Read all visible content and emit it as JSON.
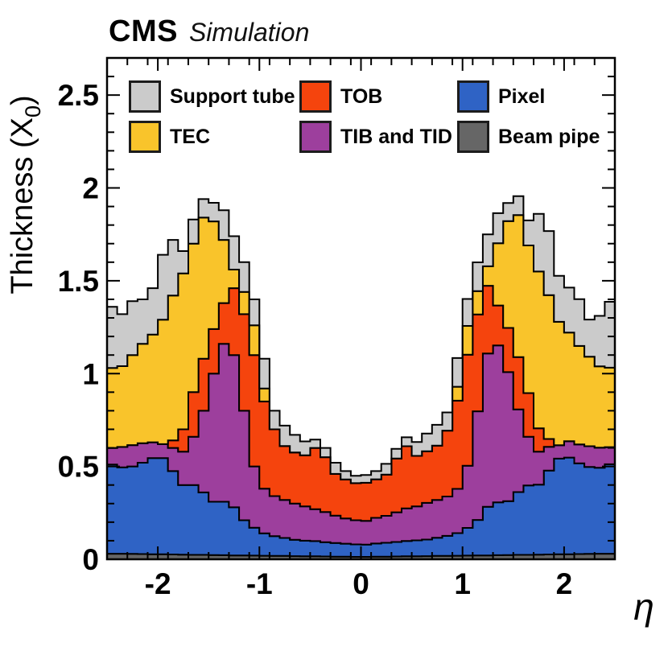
{
  "title": {
    "brand": "CMS",
    "subtitle": "Simulation"
  },
  "y_axis": {
    "label_prefix": "Thickness (X",
    "label_sub": "0",
    "label_suffix": ")",
    "tick_labels": [
      "0",
      "0.5",
      "1",
      "1.5",
      "2",
      "2.5"
    ],
    "tick_values": [
      0,
      0.5,
      1,
      1.5,
      2,
      2.5
    ],
    "minor_step": 0.1
  },
  "x_axis": {
    "label": "η",
    "tick_labels": [
      "-2",
      "-1",
      "0",
      "1",
      "2"
    ],
    "tick_values": [
      -2,
      -1,
      0,
      1,
      2
    ],
    "minor_step": 0.2
  },
  "legend": {
    "items": [
      {
        "label": "Support tube",
        "color": "#cbcbcb"
      },
      {
        "label": "TOB",
        "color": "#f5440d"
      },
      {
        "label": "Pixel",
        "color": "#2f63c5"
      },
      {
        "label": "TEC",
        "color": "#f9c42b"
      },
      {
        "label": "TIB and TID",
        "color": "#9d3f9d"
      },
      {
        "label": "Beam pipe",
        "color": "#666666"
      }
    ]
  },
  "chart_data": {
    "type": "area",
    "subtype": "stacked-histogram",
    "title": "CMS Simulation — tracker material budget",
    "xlabel": "η",
    "ylabel": "Thickness (X0)",
    "xlim": [
      -2.5,
      2.5
    ],
    "ylim": [
      0,
      2.7
    ],
    "bin_width": 0.1,
    "grid": false,
    "legend_position": "top-inside",
    "outline_color": "#000000",
    "frame_color": "#000000",
    "x": [
      -2.45,
      -2.35,
      -2.25,
      -2.15,
      -2.05,
      -1.95,
      -1.85,
      -1.75,
      -1.65,
      -1.55,
      -1.45,
      -1.35,
      -1.25,
      -1.15,
      -1.05,
      -0.95,
      -0.85,
      -0.75,
      -0.65,
      -0.55,
      -0.45,
      -0.35,
      -0.25,
      -0.15,
      -0.05,
      0.05,
      0.15,
      0.25,
      0.35,
      0.45,
      0.55,
      0.65,
      0.75,
      0.85,
      0.95,
      1.05,
      1.15,
      1.25,
      1.35,
      1.45,
      1.55,
      1.65,
      1.75,
      1.85,
      1.95,
      2.05,
      2.15,
      2.25,
      2.35,
      2.45
    ],
    "series": [
      {
        "name": "Beam pipe",
        "color": "#666666",
        "values": [
          0.03,
          0.03,
          0.029,
          0.028,
          0.027,
          0.027,
          0.026,
          0.025,
          0.024,
          0.024,
          0.023,
          0.022,
          0.021,
          0.021,
          0.02,
          0.019,
          0.018,
          0.018,
          0.017,
          0.016,
          0.016,
          0.015,
          0.014,
          0.014,
          0.013,
          0.013,
          0.014,
          0.014,
          0.015,
          0.016,
          0.016,
          0.017,
          0.018,
          0.018,
          0.019,
          0.02,
          0.021,
          0.021,
          0.022,
          0.023,
          0.024,
          0.024,
          0.025,
          0.026,
          0.027,
          0.027,
          0.028,
          0.029,
          0.03,
          0.03
        ]
      },
      {
        "name": "Pixel",
        "color": "#2f63c5",
        "values": [
          0.48,
          0.465,
          0.471,
          0.492,
          0.518,
          0.518,
          0.449,
          0.375,
          0.376,
          0.336,
          0.287,
          0.288,
          0.259,
          0.189,
          0.15,
          0.121,
          0.107,
          0.097,
          0.088,
          0.084,
          0.082,
          0.077,
          0.074,
          0.07,
          0.067,
          0.066,
          0.071,
          0.075,
          0.078,
          0.083,
          0.086,
          0.089,
          0.098,
          0.108,
          0.122,
          0.149,
          0.191,
          0.262,
          0.285,
          0.29,
          0.338,
          0.374,
          0.377,
          0.452,
          0.515,
          0.521,
          0.489,
          0.468,
          0.463,
          0.482
        ]
      },
      {
        "name": "TIB and TID",
        "color": "#9d3f9d",
        "values": [
          0.09,
          0.11,
          0.115,
          0.105,
          0.085,
          0.075,
          0.125,
          0.18,
          0.26,
          0.44,
          0.69,
          0.85,
          0.82,
          0.59,
          0.33,
          0.24,
          0.215,
          0.205,
          0.195,
          0.185,
          0.172,
          0.163,
          0.147,
          0.136,
          0.13,
          0.128,
          0.138,
          0.145,
          0.16,
          0.175,
          0.183,
          0.198,
          0.204,
          0.212,
          0.238,
          0.335,
          0.585,
          0.825,
          0.845,
          0.695,
          0.445,
          0.262,
          0.178,
          0.128,
          0.072,
          0.088,
          0.102,
          0.112,
          0.108,
          0.092
        ]
      },
      {
        "name": "TOB",
        "color": "#f5440d",
        "values": [
          0,
          0,
          0,
          0,
          0,
          0,
          0.04,
          0.12,
          0.24,
          0.28,
          0.24,
          0.22,
          0.36,
          0.52,
          0.6,
          0.47,
          0.36,
          0.29,
          0.275,
          0.275,
          0.33,
          0.295,
          0.225,
          0.21,
          0.2,
          0.205,
          0.208,
          0.222,
          0.29,
          0.335,
          0.272,
          0.278,
          0.292,
          0.355,
          0.475,
          0.598,
          0.522,
          0.365,
          0.215,
          0.238,
          0.282,
          0.235,
          0.125,
          0.042,
          0,
          0,
          0,
          0,
          0,
          0
        ]
      },
      {
        "name": "TEC",
        "color": "#f9c42b",
        "values": [
          0.43,
          0.435,
          0.485,
          0.535,
          0.58,
          0.67,
          0.78,
          0.84,
          0.8,
          0.76,
          0.58,
          0.34,
          0.1,
          0.12,
          0.16,
          0.07,
          0,
          0,
          0,
          0,
          0,
          0,
          0,
          0,
          0,
          0,
          0,
          0,
          0,
          0,
          0,
          0,
          0,
          0,
          0.075,
          0.155,
          0.125,
          0.105,
          0.335,
          0.575,
          0.765,
          0.795,
          0.845,
          0.775,
          0.665,
          0.585,
          0.53,
          0.482,
          0.438,
          0.428
        ]
      },
      {
        "name": "Support tube",
        "color": "#cbcbcb",
        "values": [
          0.33,
          0.28,
          0.29,
          0.24,
          0.25,
          0.35,
          0.3,
          0.12,
          0.13,
          0.1,
          0.1,
          0.16,
          0.18,
          0.16,
          0.14,
          0.16,
          0.1,
          0.11,
          0.095,
          0.075,
          0.045,
          0.05,
          0.06,
          0.045,
          0.04,
          0.042,
          0.044,
          0.058,
          0.052,
          0.048,
          0.075,
          0.095,
          0.112,
          0.098,
          0.155,
          0.145,
          0.155,
          0.172,
          0.162,
          0.098,
          0.102,
          0.135,
          0.31,
          0.345,
          0.248,
          0.242,
          0.252,
          0.2,
          0.272,
          0.355
        ]
      }
    ]
  }
}
